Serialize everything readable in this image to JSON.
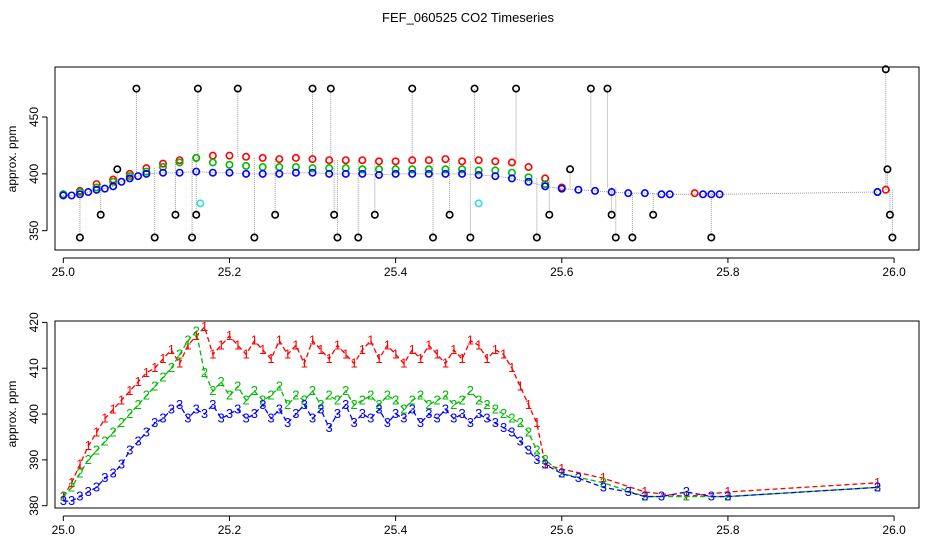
{
  "figure": {
    "title": "FEF_060525  CO2 Timeseries"
  },
  "chart_data": [
    {
      "type": "scatter",
      "ylabel": "approx. ppm",
      "xlim": [
        24.99,
        26.03
      ],
      "ylim": [
        333,
        494
      ],
      "xticks": [
        25.0,
        25.2,
        25.4,
        25.6,
        25.8,
        26.0
      ],
      "xtick_labels": [
        "25.0",
        "25.2",
        "25.4",
        "25.6",
        "25.8",
        "26.0"
      ],
      "yticks": [
        350,
        400,
        450
      ],
      "ytick_labels": [
        "350",
        "400",
        "450"
      ],
      "colors": {
        "red": "#ff0000",
        "green": "#00bb00",
        "blue": "#0000ff",
        "black": "#000000",
        "cyan": "#33dddd",
        "trace": "#999999"
      },
      "series": [
        {
          "name": "red",
          "points": [
            [
              25.0,
              382
            ],
            [
              25.02,
              385
            ],
            [
              25.04,
              391
            ],
            [
              25.06,
              395
            ],
            [
              25.08,
              400
            ],
            [
              25.1,
              405
            ],
            [
              25.12,
              409
            ],
            [
              25.14,
              412
            ],
            [
              25.16,
              414
            ],
            [
              25.18,
              416
            ],
            [
              25.2,
              416
            ],
            [
              25.22,
              415
            ],
            [
              25.24,
              414
            ],
            [
              25.26,
              413
            ],
            [
              25.28,
              414
            ],
            [
              25.3,
              413
            ],
            [
              25.32,
              412
            ],
            [
              25.34,
              412
            ],
            [
              25.36,
              412
            ],
            [
              25.38,
              411
            ],
            [
              25.4,
              411
            ],
            [
              25.42,
              412
            ],
            [
              25.44,
              412
            ],
            [
              25.46,
              413
            ],
            [
              25.48,
              411
            ],
            [
              25.5,
              412
            ],
            [
              25.52,
              411
            ],
            [
              25.54,
              410
            ],
            [
              25.56,
              406
            ],
            [
              25.58,
              396
            ],
            [
              25.6,
              388
            ],
            [
              25.76,
              383
            ],
            [
              25.99,
              386
            ]
          ]
        },
        {
          "name": "green",
          "points": [
            [
              25.0,
              382
            ],
            [
              25.02,
              384
            ],
            [
              25.04,
              388
            ],
            [
              25.06,
              393
            ],
            [
              25.08,
              398
            ],
            [
              25.1,
              402
            ],
            [
              25.12,
              406
            ],
            [
              25.14,
              410
            ],
            [
              25.16,
              414
            ],
            [
              25.18,
              410
            ],
            [
              25.2,
              408
            ],
            [
              25.22,
              407
            ],
            [
              25.24,
              406
            ],
            [
              25.26,
              406
            ],
            [
              25.28,
              406
            ],
            [
              25.3,
              405
            ],
            [
              25.32,
              405
            ],
            [
              25.34,
              405
            ],
            [
              25.36,
              404
            ],
            [
              25.38,
              404
            ],
            [
              25.4,
              404
            ],
            [
              25.42,
              404
            ],
            [
              25.44,
              404
            ],
            [
              25.46,
              404
            ],
            [
              25.48,
              404
            ],
            [
              25.5,
              403
            ],
            [
              25.52,
              403
            ],
            [
              25.54,
              401
            ],
            [
              25.56,
              397
            ],
            [
              25.58,
              391
            ],
            [
              25.6,
              387
            ],
            [
              25.98,
              384
            ]
          ]
        },
        {
          "name": "blue",
          "points": [
            [
              25.0,
              381
            ],
            [
              25.01,
              381
            ],
            [
              25.02,
              382
            ],
            [
              25.03,
              384
            ],
            [
              25.04,
              386
            ],
            [
              25.05,
              387
            ],
            [
              25.06,
              389
            ],
            [
              25.07,
              393
            ],
            [
              25.08,
              396
            ],
            [
              25.09,
              398
            ],
            [
              25.1,
              400
            ],
            [
              25.12,
              401
            ],
            [
              25.14,
              401
            ],
            [
              25.16,
              402
            ],
            [
              25.18,
              401
            ],
            [
              25.2,
              401
            ],
            [
              25.22,
              400
            ],
            [
              25.24,
              400
            ],
            [
              25.26,
              400
            ],
            [
              25.28,
              401
            ],
            [
              25.3,
              401
            ],
            [
              25.32,
              400
            ],
            [
              25.34,
              400
            ],
            [
              25.36,
              400
            ],
            [
              25.38,
              399
            ],
            [
              25.4,
              400
            ],
            [
              25.42,
              400
            ],
            [
              25.44,
              400
            ],
            [
              25.46,
              400
            ],
            [
              25.48,
              400
            ],
            [
              25.5,
              399
            ],
            [
              25.52,
              398
            ],
            [
              25.54,
              396
            ],
            [
              25.56,
              393
            ],
            [
              25.58,
              389
            ],
            [
              25.6,
              387
            ],
            [
              25.62,
              386
            ],
            [
              25.64,
              385
            ],
            [
              25.66,
              384
            ],
            [
              25.68,
              383
            ],
            [
              25.7,
              383
            ],
            [
              25.72,
              382
            ],
            [
              25.73,
              382
            ],
            [
              25.77,
              382
            ],
            [
              25.78,
              382
            ],
            [
              25.79,
              382
            ],
            [
              25.98,
              384
            ]
          ]
        },
        {
          "name": "black",
          "points": [
            [
              25.02,
              344
            ],
            [
              25.045,
              364
            ],
            [
              25.065,
              404
            ],
            [
              25.088,
              475
            ],
            [
              25.11,
              344
            ],
            [
              25.135,
              364
            ],
            [
              25.155,
              344
            ],
            [
              25.16,
              364
            ],
            [
              25.162,
              475
            ],
            [
              25.21,
              475
            ],
            [
              25.23,
              344
            ],
            [
              25.255,
              364
            ],
            [
              25.3,
              475
            ],
            [
              25.322,
              475
            ],
            [
              25.326,
              364
            ],
            [
              25.33,
              344
            ],
            [
              25.355,
              344
            ],
            [
              25.375,
              364
            ],
            [
              25.42,
              475
            ],
            [
              25.445,
              344
            ],
            [
              25.465,
              364
            ],
            [
              25.49,
              344
            ],
            [
              25.495,
              475
            ],
            [
              25.545,
              475
            ],
            [
              25.57,
              344
            ],
            [
              25.585,
              364
            ],
            [
              25.61,
              404
            ],
            [
              25.635,
              475
            ],
            [
              25.655,
              475
            ],
            [
              25.66,
              364
            ],
            [
              25.665,
              344
            ],
            [
              25.685,
              344
            ],
            [
              25.71,
              364
            ],
            [
              25.78,
              344
            ],
            [
              25.99,
              492
            ],
            [
              25.992,
              404
            ],
            [
              25.995,
              364
            ],
            [
              25.998,
              344
            ]
          ]
        },
        {
          "name": "cyan",
          "points": [
            [
              25.165,
              374
            ],
            [
              25.5,
              374
            ]
          ]
        }
      ]
    },
    {
      "type": "line",
      "ylabel": "approx. ppm",
      "xlim": [
        24.99,
        26.03
      ],
      "ylim": [
        379.5,
        420.3
      ],
      "xticks": [
        25.0,
        25.2,
        25.4,
        25.6,
        25.8,
        26.0
      ],
      "xtick_labels": [
        "25.0",
        "25.2",
        "25.4",
        "25.6",
        "25.8",
        "26.0"
      ],
      "yticks": [
        380,
        390,
        400,
        410,
        420
      ],
      "ytick_labels": [
        "380",
        "390",
        "400",
        "410",
        "420"
      ],
      "series": [
        {
          "name": "1",
          "label": "1",
          "color": "#ff0000",
          "x": [
            25.0,
            25.01,
            25.02,
            25.03,
            25.04,
            25.05,
            25.06,
            25.07,
            25.08,
            25.09,
            25.1,
            25.11,
            25.12,
            25.13,
            25.14,
            25.15,
            25.16,
            25.17,
            25.18,
            25.19,
            25.2,
            25.21,
            25.22,
            25.23,
            25.24,
            25.25,
            25.26,
            25.27,
            25.28,
            25.29,
            25.3,
            25.31,
            25.32,
            25.33,
            25.34,
            25.35,
            25.36,
            25.37,
            25.38,
            25.39,
            25.4,
            25.41,
            25.42,
            25.43,
            25.44,
            25.45,
            25.46,
            25.47,
            25.48,
            25.49,
            25.5,
            25.51,
            25.52,
            25.53,
            25.54,
            25.55,
            25.56,
            25.57,
            25.58,
            25.6,
            25.65,
            25.7,
            25.75,
            25.8,
            25.98
          ],
          "y": [
            382,
            385,
            389,
            393,
            396,
            399,
            401,
            403,
            405,
            407,
            409,
            410,
            412,
            414,
            411,
            415,
            417,
            419,
            413,
            415,
            417,
            415,
            413,
            416,
            414,
            412,
            416,
            413,
            415,
            411,
            416,
            414,
            412,
            415,
            413,
            411,
            414,
            416,
            412,
            415,
            413,
            411,
            414,
            412,
            415,
            413,
            411,
            414,
            412,
            416,
            415,
            412,
            414,
            413,
            410,
            406,
            402,
            398,
            389,
            388,
            386,
            383,
            382,
            383,
            385
          ]
        },
        {
          "name": "2",
          "label": "2",
          "color": "#00bb00",
          "x": [
            25.0,
            25.01,
            25.02,
            25.03,
            25.04,
            25.05,
            25.06,
            25.07,
            25.08,
            25.09,
            25.1,
            25.11,
            25.12,
            25.13,
            25.14,
            25.15,
            25.16,
            25.17,
            25.18,
            25.19,
            25.2,
            25.21,
            25.22,
            25.23,
            25.24,
            25.25,
            25.26,
            25.27,
            25.28,
            25.29,
            25.3,
            25.31,
            25.32,
            25.33,
            25.34,
            25.35,
            25.36,
            25.37,
            25.38,
            25.39,
            25.4,
            25.41,
            25.42,
            25.43,
            25.44,
            25.45,
            25.46,
            25.47,
            25.48,
            25.49,
            25.5,
            25.51,
            25.52,
            25.53,
            25.54,
            25.55,
            25.56,
            25.57,
            25.58,
            25.6,
            25.65,
            25.7,
            25.75,
            25.8,
            25.98
          ],
          "y": [
            382,
            384,
            387,
            390,
            392,
            394,
            396,
            398,
            400,
            402,
            404,
            406,
            408,
            410,
            413,
            416,
            418,
            409,
            405,
            407,
            404,
            406,
            403,
            405,
            403,
            404,
            406,
            402,
            404,
            403,
            405,
            402,
            404,
            403,
            405,
            402,
            403,
            404,
            402,
            404,
            403,
            401,
            403,
            404,
            402,
            403,
            404,
            402,
            403,
            405,
            403,
            402,
            401,
            400,
            399,
            398,
            396,
            392,
            390,
            387,
            385,
            382,
            382,
            382,
            384
          ]
        },
        {
          "name": "3",
          "label": "3",
          "color": "#0000ff",
          "x": [
            25.0,
            25.01,
            25.02,
            25.03,
            25.04,
            25.05,
            25.06,
            25.07,
            25.08,
            25.09,
            25.1,
            25.11,
            25.12,
            25.13,
            25.14,
            25.15,
            25.16,
            25.17,
            25.18,
            25.19,
            25.2,
            25.21,
            25.22,
            25.23,
            25.24,
            25.25,
            25.26,
            25.27,
            25.28,
            25.29,
            25.3,
            25.31,
            25.32,
            25.33,
            25.34,
            25.35,
            25.36,
            25.37,
            25.38,
            25.39,
            25.4,
            25.41,
            25.42,
            25.43,
            25.44,
            25.45,
            25.46,
            25.47,
            25.48,
            25.49,
            25.5,
            25.51,
            25.52,
            25.53,
            25.54,
            25.55,
            25.56,
            25.57,
            25.58,
            25.6,
            25.62,
            25.65,
            25.68,
            25.7,
            25.72,
            25.75,
            25.78,
            25.8,
            25.98
          ],
          "y": [
            381,
            381,
            382,
            383,
            384,
            386,
            387,
            389,
            392,
            394,
            396,
            398,
            399,
            401,
            402,
            399,
            401,
            400,
            402,
            399,
            400,
            401,
            399,
            400,
            402,
            399,
            401,
            398,
            400,
            402,
            399,
            401,
            397,
            400,
            402,
            398,
            400,
            399,
            401,
            398,
            400,
            399,
            401,
            398,
            400,
            399,
            401,
            399,
            400,
            398,
            400,
            399,
            398,
            397,
            396,
            394,
            392,
            390,
            389,
            387,
            386,
            384,
            383,
            382,
            382,
            383,
            382,
            382,
            384
          ]
        }
      ]
    }
  ]
}
